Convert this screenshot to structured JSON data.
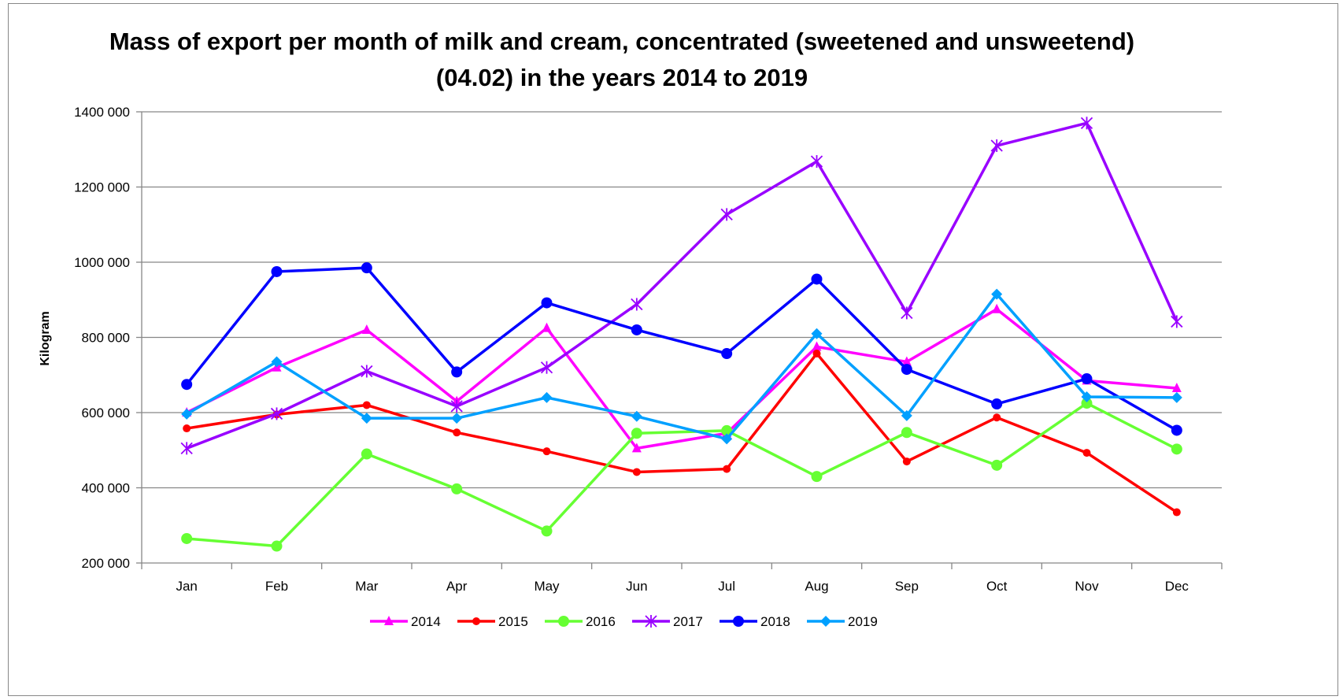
{
  "chart_data": {
    "type": "line",
    "title": "Mass of export per month of milk and cream, concentrated (sweetened and unsweetend) (04.02) in the years 2014 to 2019",
    "xlabel": "",
    "ylabel": "Kilogram",
    "categories": [
      "Jan",
      "Feb",
      "Mar",
      "Apr",
      "May",
      "Jun",
      "Jul",
      "Aug",
      "Sep",
      "Oct",
      "Nov",
      "Dec"
    ],
    "ylim": [
      200000,
      1400000
    ],
    "yticks": [
      200000,
      400000,
      600000,
      800000,
      1000000,
      1200000,
      1400000
    ],
    "ytick_labels": [
      "200 000",
      "400 000",
      "600 000",
      "800 000",
      "1000 000",
      "1200 000",
      "1400 000"
    ],
    "grid": true,
    "legend_position": "bottom",
    "series": [
      {
        "name": "2014",
        "color": "#ff00ff",
        "marker": "triangle",
        "values": [
          600000,
          720000,
          820000,
          630000,
          825000,
          505000,
          545000,
          775000,
          735000,
          875000,
          685000,
          665000
        ]
      },
      {
        "name": "2015",
        "color": "#ff0000",
        "marker": "circle-small",
        "values": [
          558000,
          595000,
          620000,
          547000,
          497000,
          442000,
          450000,
          757000,
          470000,
          587000,
          493000,
          335000
        ]
      },
      {
        "name": "2016",
        "color": "#66ff33",
        "marker": "circle",
        "values": [
          265000,
          245000,
          490000,
          397000,
          285000,
          545000,
          552000,
          430000,
          547000,
          460000,
          625000,
          503000
        ]
      },
      {
        "name": "2017",
        "color": "#9900ff",
        "marker": "star",
        "values": [
          505000,
          597000,
          710000,
          617000,
          720000,
          888000,
          1127000,
          1268000,
          865000,
          1310000,
          1370000,
          842000
        ]
      },
      {
        "name": "2018",
        "color": "#0000ff",
        "marker": "circle",
        "values": [
          675000,
          975000,
          985000,
          708000,
          892000,
          820000,
          757000,
          955000,
          715000,
          623000,
          690000,
          553000
        ]
      },
      {
        "name": "2019",
        "color": "#00a0ff",
        "marker": "diamond",
        "values": [
          596000,
          735000,
          585000,
          585000,
          640000,
          590000,
          530000,
          810000,
          592000,
          915000,
          642000,
          640000
        ]
      }
    ]
  }
}
